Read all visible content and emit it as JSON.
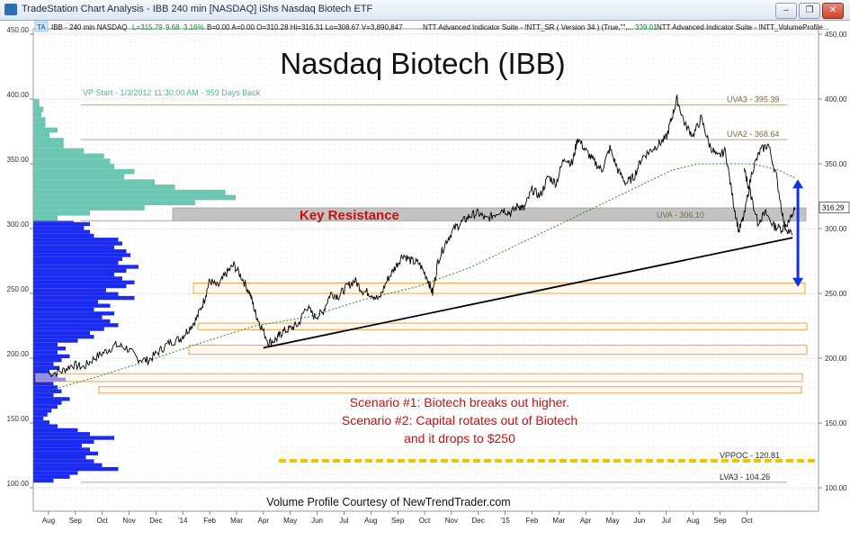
{
  "window": {
    "title": "TradeStation Chart Analysis - IBB 240 min [NASDAQ] iShs Nasdaq Biotech ETF",
    "controls": [
      "–",
      "❐",
      "✕"
    ]
  },
  "info_bar": {
    "tag": "TA",
    "symbol_info": "IBB - 240 min  NASDAQ",
    "last": "L=315.79",
    "change": "9.68",
    "change_pct": "3.16%",
    "stats": "B=0.00  A=0.00  O=310.28  Hi=316.31  Lo=308.67  V=3,890,847",
    "indicator1": "NTT Advanced Indicator Suite - !NTT_SR ( Version 34 ) (True,\"\",...",
    "indicator2_value": "339.01",
    "indicator2": "NTT Advanced Indicator Suite - !NTT_VolumeProfile..."
  },
  "colors": {
    "volume_upper": "#6cc7b2",
    "volume_lower": "#1b2cf0",
    "zone_border": "#f2a24a",
    "zone_fill": "#fff2dc",
    "resistance_fill": "#b9b9b9",
    "annotation_red": "#c81010",
    "arrow_blue": "#1133dd",
    "level_line": "#b3a88a",
    "ma_green": "#2c8c2c",
    "vppoc": "#f2c300"
  },
  "chart_data": {
    "type": "line",
    "title": "Nasdaq Biotech (IBB)",
    "vp_note": "VP Start - 1/3/2012 11:30:00 AM - 959 Days Back",
    "ylim": [
      100,
      450
    ],
    "y_ticks": [
      100,
      150,
      200,
      250,
      300,
      350,
      400,
      450
    ],
    "y_tick_labels": [
      "100.00",
      "150.00",
      "200.00",
      "250.00",
      "300.00",
      "350.00",
      "400.00",
      "450.00"
    ],
    "x_range": [
      0,
      28.8
    ],
    "x_ticks": [
      {
        "pos": 0.3,
        "label": "Aug"
      },
      {
        "pos": 1.3,
        "label": "Sep"
      },
      {
        "pos": 2.3,
        "label": "Oct"
      },
      {
        "pos": 3.3,
        "label": "Nov"
      },
      {
        "pos": 4.3,
        "label": "Dec"
      },
      {
        "pos": 5.3,
        "label": "'14"
      },
      {
        "pos": 6.3,
        "label": "Feb"
      },
      {
        "pos": 7.3,
        "label": "Mar"
      },
      {
        "pos": 8.3,
        "label": "Apr"
      },
      {
        "pos": 9.3,
        "label": "May"
      },
      {
        "pos": 10.3,
        "label": "Jun"
      },
      {
        "pos": 11.3,
        "label": "Jul"
      },
      {
        "pos": 12.3,
        "label": "Aug"
      },
      {
        "pos": 13.3,
        "label": "Sep"
      },
      {
        "pos": 14.3,
        "label": "Oct"
      },
      {
        "pos": 15.3,
        "label": "Nov"
      },
      {
        "pos": 16.3,
        "label": "Dec"
      },
      {
        "pos": 17.3,
        "label": "'15"
      },
      {
        "pos": 18.3,
        "label": "Feb"
      },
      {
        "pos": 19.3,
        "label": "Mar"
      },
      {
        "pos": 20.3,
        "label": "Apr"
      },
      {
        "pos": 21.3,
        "label": "May"
      },
      {
        "pos": 22.3,
        "label": "Jun"
      },
      {
        "pos": 23.3,
        "label": "Jul"
      },
      {
        "pos": 24.3,
        "label": "Aug"
      },
      {
        "pos": 25.3,
        "label": "Sep"
      },
      {
        "pos": 26.3,
        "label": "Oct"
      }
    ],
    "price_series": {
      "x": [
        0.3,
        0.8,
        1.2,
        1.6,
        2.0,
        2.4,
        2.8,
        3.2,
        3.6,
        4.0,
        4.4,
        4.8,
        5.2,
        5.5,
        5.8,
        6.1,
        6.3,
        6.6,
        6.9,
        7.2,
        7.5,
        7.8,
        8.0,
        8.2,
        8.5,
        8.8,
        9.0,
        9.3,
        9.6,
        9.9,
        10.2,
        10.5,
        10.8,
        11.1,
        11.4,
        11.7,
        12.0,
        12.3,
        12.6,
        12.9,
        13.2,
        13.5,
        13.8,
        14.1,
        14.4,
        14.6,
        14.8,
        15.1,
        15.4,
        15.7,
        16.0,
        16.3,
        16.6,
        16.9,
        17.2,
        17.5,
        17.8,
        18.0,
        18.3,
        18.6,
        18.9,
        19.2,
        19.5,
        19.8,
        20.0,
        20.3,
        20.6,
        20.9,
        21.2,
        21.5,
        21.8,
        22.1,
        22.4,
        22.7,
        23.0,
        23.3,
        23.5,
        23.7,
        24.0,
        24.3,
        24.6,
        24.9,
        25.2,
        25.5,
        25.8,
        26.0,
        26.2,
        26.5,
        26.8,
        27.1,
        27.4,
        27.7,
        28.0
      ],
      "y": [
        188,
        190,
        195,
        193,
        200,
        205,
        210,
        208,
        200,
        198,
        205,
        212,
        215,
        222,
        230,
        245,
        260,
        255,
        265,
        272,
        262,
        250,
        235,
        225,
        212,
        215,
        220,
        223,
        226,
        240,
        232,
        235,
        250,
        248,
        255,
        260,
        252,
        250,
        245,
        260,
        270,
        280,
        275,
        273,
        262,
        250,
        275,
        290,
        300,
        305,
        310,
        312,
        307,
        311,
        315,
        312,
        318,
        315,
        330,
        325,
        340,
        335,
        355,
        350,
        370,
        360,
        352,
        345,
        362,
        345,
        335,
        340,
        355,
        360,
        365,
        370,
        385,
        400,
        380,
        372,
        385,
        365,
        355,
        360,
        320,
        298,
        310,
        345,
        360,
        365,
        340,
        302,
        295
      ],
      "x2": [
        26.2,
        26.4,
        26.7,
        27.0,
        27.3,
        27.6,
        27.9,
        28.1
      ],
      "y2": [
        345,
        330,
        305,
        312,
        302,
        300,
        306,
        316
      ]
    },
    "moving_average": {
      "x": [
        0.3,
        2.0,
        4.0,
        6.0,
        8.0,
        10.0,
        12.0,
        14.0,
        16.0,
        18.0,
        20.0,
        22.0,
        23.5,
        24.5,
        25.5,
        26.5,
        27.5,
        28.1
      ],
      "y": [
        175,
        185,
        198,
        212,
        225,
        232,
        245,
        255,
        270,
        290,
        310,
        330,
        345,
        350,
        350,
        350,
        345,
        339
      ]
    },
    "levels": [
      {
        "label": "UVA3 - 395.39",
        "value": 395.39
      },
      {
        "label": "UVA2 - 368.64",
        "value": 368.64
      },
      {
        "label": "UVA - 306.10",
        "value": 306.1
      },
      {
        "label": "VPPOC - 120.81",
        "value": 120.81
      },
      {
        "label": "LVA3 - 104.26",
        "value": 104.26
      }
    ],
    "current_price_label": "316.29",
    "current_price": 316.29,
    "resistance_zone": {
      "label": "Key Resistance",
      "low": 306,
      "high": 316
    },
    "support_zones": [
      {
        "low": 250,
        "high": 258
      },
      {
        "low": 222,
        "high": 227
      },
      {
        "low": 203,
        "high": 210
      },
      {
        "low": 182,
        "high": 188
      },
      {
        "low": 173,
        "high": 178
      }
    ],
    "trendline": {
      "x1": 8.3,
      "y1": 208,
      "x2": 28.0,
      "y2": 293
    },
    "arrow": {
      "x": 28.2,
      "y_top": 338,
      "y_bottom": 255
    },
    "volume_profile_upper": {
      "from": 306,
      "to": 400,
      "step": 4,
      "lengths": [
        0.12,
        0.28,
        0.55,
        0.8,
        1.0,
        0.95,
        0.7,
        0.6,
        0.45,
        0.5,
        0.4,
        0.38,
        0.35,
        0.25,
        0.15,
        0.15,
        0.08,
        0.12,
        0.06,
        0.06,
        0.04,
        0.05,
        0.03,
        0.03,
        0.02
      ]
    },
    "volume_profile_lower": {
      "from": 104,
      "to": 306,
      "step": 3,
      "lengths": [
        0.1,
        0.18,
        0.22,
        0.42,
        0.34,
        0.3,
        0.26,
        0.32,
        0.28,
        0.24,
        0.3,
        0.4,
        0.28,
        0.22,
        0.12,
        0.08,
        0.05,
        0.07,
        0.09,
        0.12,
        0.14,
        0.18,
        0.1,
        0.14,
        0.12,
        0.1,
        0.16,
        0.12,
        0.08,
        0.13,
        0.1,
        0.14,
        0.18,
        0.12,
        0.16,
        0.12,
        0.22,
        0.3,
        0.28,
        0.35,
        0.42,
        0.38,
        0.34,
        0.4,
        0.3,
        0.38,
        0.32,
        0.5,
        0.42,
        0.36,
        0.46,
        0.5,
        0.44,
        0.4,
        0.46,
        0.52,
        0.42,
        0.44,
        0.48,
        0.46,
        0.4,
        0.44,
        0.42,
        0.3,
        0.28,
        0.25,
        0.28,
        0.2
      ]
    },
    "scenario_lines": [
      "Scenario #1: Biotech breaks out higher.",
      "Scenario #2: Capital rotates out of Biotech",
      "and it drops to $250"
    ],
    "credit": "Volume Profile Courtesy of NewTrendTrader.com"
  }
}
